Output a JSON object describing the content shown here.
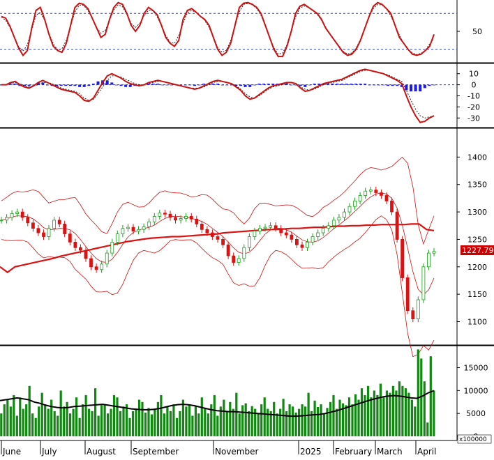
{
  "chart_data": [
    {
      "panel": "oscillator",
      "type": "line",
      "yticks": [
        50
      ],
      "ylim": [
        0,
        100
      ],
      "ref_lines": [
        80,
        20
      ],
      "series": [
        {
          "values": [
            75,
            72,
            58,
            40,
            22,
            10,
            18,
            55,
            85,
            90,
            70,
            45,
            25,
            18,
            15,
            30,
            60,
            90,
            97,
            95,
            88,
            72,
            56,
            40,
            45,
            70,
            90,
            98,
            95,
            80,
            60,
            50,
            60,
            80,
            90,
            85,
            78,
            60,
            40,
            30,
            25,
            35,
            70,
            85,
            88,
            82,
            75,
            70,
            60,
            40,
            20,
            10,
            15,
            30,
            60,
            90,
            97,
            98,
            95,
            90,
            80,
            60,
            40,
            20,
            8,
            8,
            25,
            50,
            80,
            92,
            95,
            90,
            85,
            80,
            70,
            55,
            45,
            35,
            25,
            15,
            10,
            12,
            20,
            35,
            55,
            75,
            92,
            98,
            95,
            88,
            80,
            60,
            40,
            30,
            20,
            12,
            10,
            12,
            18,
            25,
            45
          ]
        }
      ]
    },
    {
      "panel": "macd",
      "type": "line+bar",
      "yticks": [
        10,
        0,
        -10,
        -20,
        -30
      ],
      "ylim": [
        -38,
        18
      ],
      "series": [
        {
          "values": [
            0,
            0,
            2,
            3,
            0,
            -2,
            -3,
            -1,
            2,
            4,
            2,
            0,
            -2,
            -4,
            -5,
            -6,
            -7,
            -10,
            -14,
            -15,
            -12,
            -5,
            2,
            8,
            10,
            8,
            6,
            3,
            1,
            0,
            -1,
            0,
            2,
            3,
            4,
            3,
            2,
            1,
            0,
            -1,
            -2,
            -3,
            -4,
            -3,
            -1,
            1,
            3,
            4,
            3,
            2,
            1,
            -2,
            -5,
            -10,
            -13,
            -12,
            -9,
            -6,
            -3,
            -1,
            0,
            1,
            2,
            2,
            1,
            -3,
            -6,
            -5,
            -3,
            -1,
            1,
            2,
            3,
            4,
            5,
            7,
            9,
            11,
            13,
            14,
            13,
            12,
            11,
            10,
            8,
            6,
            4,
            1,
            -10,
            -20,
            -28,
            -34,
            -33,
            -30,
            -28
          ]
        },
        {
          "values": [
            0,
            0,
            1,
            2,
            1,
            -1,
            -2,
            -1,
            0,
            2,
            2,
            1,
            -1,
            -3,
            -4,
            -5,
            -6,
            -8,
            -12,
            -14,
            -13,
            -8,
            -2,
            4,
            8,
            8,
            7,
            5,
            3,
            1,
            0,
            0,
            1,
            2,
            3,
            3,
            2,
            1,
            0,
            -1,
            -2,
            -3,
            -3,
            -3,
            -2,
            0,
            2,
            3,
            3,
            2,
            1,
            -1,
            -4,
            -8,
            -11,
            -12,
            -10,
            -7,
            -4,
            -2,
            -1,
            0,
            1,
            2,
            1,
            -2,
            -4,
            -5,
            -4,
            -2,
            0,
            1,
            2,
            3,
            4,
            6,
            8,
            10,
            12,
            13,
            13,
            12,
            11,
            10,
            9,
            7,
            5,
            3,
            -5,
            -14,
            -22,
            -28,
            -30,
            -29,
            -28
          ]
        },
        {
          "values": [
            0,
            0,
            1,
            1,
            -1,
            -1,
            -1,
            0,
            2,
            2,
            0,
            -1,
            -1,
            -1,
            -1,
            -1,
            -1,
            -2,
            -2,
            -1,
            1,
            3,
            4,
            4,
            2,
            0,
            -1,
            -2,
            -2,
            -1,
            -1,
            0,
            1,
            1,
            1,
            0,
            0,
            0,
            0,
            0,
            0,
            0,
            -1,
            0,
            1,
            1,
            1,
            1,
            0,
            0,
            0,
            -1,
            -1,
            -2,
            -2,
            0,
            1,
            1,
            1,
            1,
            1,
            1,
            1,
            0,
            0,
            -1,
            -2,
            0,
            1,
            1,
            1,
            1,
            1,
            1,
            1,
            1,
            1,
            1,
            1,
            1,
            0,
            0,
            0,
            0,
            -1,
            -1,
            -1,
            -2,
            -5,
            -6,
            -6,
            -6,
            -3,
            -1,
            0
          ]
        }
      ]
    },
    {
      "panel": "price",
      "type": "candlestick",
      "yticks": [
        1400,
        1350,
        1300,
        1250,
        1200,
        1150,
        1100
      ],
      "ylim": [
        1060,
        1450
      ],
      "last_price_label": "1227.790",
      "series": [
        {
          "values": [
            1285,
            1290,
            1297,
            1300,
            1290,
            1280,
            1270,
            1262,
            1255,
            1270,
            1285,
            1278,
            1260,
            1245,
            1235,
            1230,
            1215,
            1200,
            1195,
            1205,
            1225,
            1245,
            1260,
            1270,
            1272,
            1265,
            1268,
            1273,
            1282,
            1292,
            1298,
            1296,
            1290,
            1285,
            1288,
            1292,
            1287,
            1278,
            1268,
            1262,
            1255,
            1250,
            1240,
            1220,
            1208,
            1215,
            1235,
            1255,
            1265,
            1270,
            1272,
            1275,
            1270,
            1262,
            1258,
            1250,
            1240,
            1235,
            1245,
            1255,
            1262,
            1270,
            1275,
            1285,
            1290,
            1300,
            1310,
            1320,
            1330,
            1338,
            1340,
            1335,
            1330,
            1320,
            1300,
            1250,
            1180,
            1120,
            1105,
            1140,
            1200,
            1225,
            1228
          ]
        },
        {
          "values": [
            1200,
            1190,
            1200,
            1203,
            1206,
            1209,
            1212,
            1215,
            1219,
            1222,
            1225,
            1228,
            1231,
            1234,
            1237,
            1240,
            1243,
            1246,
            1248,
            1250,
            1252,
            1253,
            1254,
            1255,
            1255,
            1256,
            1257,
            1258,
            1259,
            1260,
            1262,
            1263,
            1264,
            1265,
            1266,
            1267,
            1268,
            1268,
            1269,
            1270,
            1270,
            1271,
            1272,
            1272,
            1273,
            1274,
            1274,
            1275,
            1275,
            1276,
            1276,
            1277,
            1277,
            1277,
            1277,
            1278,
            1278,
            1268,
            1266
          ]
        }
      ]
    },
    {
      "panel": "volume",
      "type": "bar",
      "yticks": [
        15000,
        10000,
        5000,
        0
      ],
      "ylim": [
        0,
        19500
      ],
      "unit_label": "x100000",
      "xticks": [
        "June",
        "July",
        "August",
        "September",
        "November",
        "2025",
        "February",
        "March",
        "April"
      ],
      "series": [
        {
          "values": [
            5000,
            7000,
            8000,
            6500,
            9000,
            4500,
            8500,
            6000,
            7000,
            11000,
            5000,
            4000,
            6500,
            9500,
            7000,
            6000,
            8000,
            5500,
            4500,
            10000,
            6500,
            7500,
            5000,
            6000,
            8500,
            4000,
            7000,
            9000,
            6000,
            5500,
            10500,
            4500,
            6800,
            7000,
            5000,
            6000,
            9000,
            8500,
            5500,
            6500,
            7000,
            4000,
            5500,
            6000,
            8000,
            7500,
            5200,
            6200,
            4800,
            6000,
            7500,
            9000,
            5000,
            6500,
            5500,
            7000,
            4000,
            5500,
            8000,
            6500,
            7000,
            4500,
            6500,
            5000,
            8500,
            6000,
            5000,
            7000,
            9000,
            4500,
            6500,
            8000,
            5500,
            7500,
            6000,
            9500,
            5000,
            6800,
            7200,
            5500,
            6600,
            6000,
            5000,
            7000,
            8500,
            6000,
            5500,
            7500,
            5000,
            6000,
            8200,
            5500,
            7000,
            6500,
            5200,
            6000,
            7000,
            6500,
            9500,
            5500,
            7800,
            6400,
            7000,
            5000,
            6200,
            7500,
            9000,
            6000,
            8000,
            7200,
            6800,
            8500,
            7000,
            9200,
            8000,
            10500,
            9000,
            11000,
            8500,
            10000,
            9000,
            11500,
            8500,
            10000,
            9500,
            11000,
            10000,
            12000,
            11000,
            10500,
            9500,
            8000,
            6500,
            19000,
            17000,
            12000,
            3000,
            17500,
            10000
          ]
        },
        {
          "values": [
            7800,
            8000,
            8200,
            8400,
            8200,
            8000,
            7500,
            7200,
            6800,
            6500,
            6300,
            6200,
            6300,
            6500,
            6600,
            6700,
            6800,
            6900,
            7000,
            6800,
            6600,
            6400,
            6200,
            6000,
            5900,
            5800,
            5800,
            5900,
            6100,
            6400,
            6700,
            6900,
            7000,
            6900,
            6700,
            6400,
            6100,
            5800,
            5600,
            5500,
            5400,
            5400,
            5300,
            5200,
            5100,
            5000,
            4900,
            4800,
            4700,
            4600,
            4500,
            4400,
            4400,
            4500,
            4600,
            4700,
            4800,
            5000,
            5300,
            5600,
            6000,
            6400,
            6800,
            7200,
            7600,
            8000,
            8300,
            8600,
            8800,
            8900,
            8800,
            8600,
            8400,
            8300,
            8800,
            9500,
            10000
          ]
        }
      ]
    }
  ]
}
